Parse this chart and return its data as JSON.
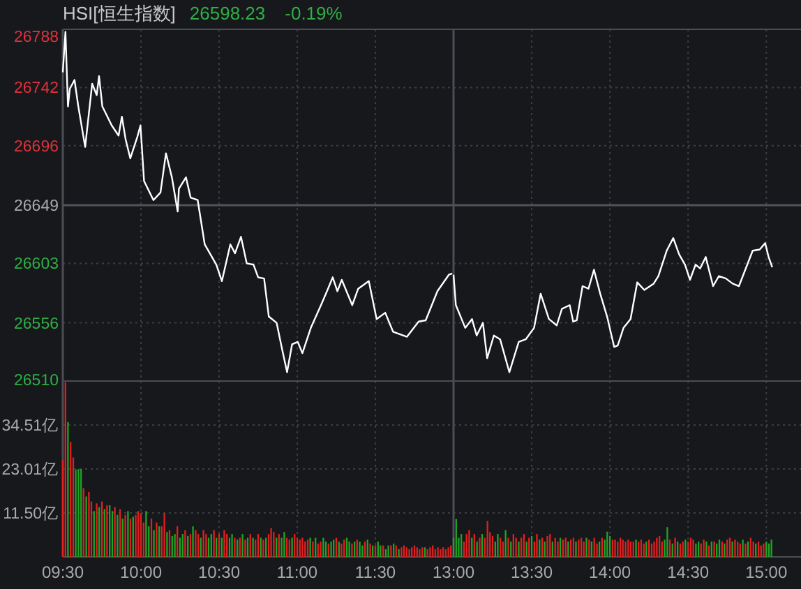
{
  "chart_data": [
    {
      "type": "line",
      "title": "HSI[恒生指数]",
      "annotations": [
        "26598.23",
        "-0.19%"
      ],
      "color": "#ffffff",
      "x": [
        9.5,
        9.517,
        9.533,
        9.545,
        9.575,
        9.598,
        9.643,
        9.688,
        9.717,
        9.732,
        9.753,
        9.813,
        9.857,
        9.878,
        9.902,
        9.932,
        9.977,
        9.997,
        10.02,
        10.08,
        10.125,
        10.16,
        10.198,
        10.235,
        10.243,
        10.288,
        10.318,
        10.363,
        10.408,
        10.482,
        10.518,
        10.572,
        10.602,
        10.64,
        10.677,
        10.72,
        10.75,
        10.788,
        10.818,
        10.868,
        10.9,
        10.935,
        10.967,
        11.003,
        11.033,
        11.087,
        11.152,
        11.197,
        11.227,
        11.257,
        11.285,
        11.352,
        11.39,
        11.458,
        11.508,
        11.563,
        11.613,
        11.702,
        11.777,
        11.822,
        11.897,
        11.97,
        11.992
      ],
      "values": [
        26754,
        26786,
        26727,
        26741,
        26748,
        26728,
        26695,
        26745,
        26736,
        26751,
        26727,
        26712,
        26704,
        26719,
        26701,
        26686,
        26703,
        26712,
        26668,
        26653,
        26659,
        26690,
        26671,
        26644,
        26662,
        26671,
        26655,
        26653,
        26618,
        26602,
        26589,
        26618,
        26611,
        26624,
        26603,
        26602,
        26592,
        26591,
        26561,
        26556,
        26537,
        26517,
        26539,
        26541,
        26532,
        26552,
        26570,
        26583,
        26592,
        26581,
        26590,
        26570,
        26583,
        26589,
        26559,
        26564,
        26549,
        26545,
        26557,
        26558,
        26581,
        26594,
        26595
      ],
      "xlim": [
        9.5,
        12
      ],
      "xticks": [
        9.5,
        10,
        10.5,
        11,
        11.5
      ],
      "ylim": [
        26510,
        26788
      ],
      "yticks": [
        26510,
        26556,
        26603,
        26649,
        26696,
        26742,
        26788
      ],
      "ref_lines": [
        {
          "axis": "y",
          "value": 26649
        }
      ],
      "grid": true,
      "tick_labels": "y"
    },
    {
      "type": "line",
      "color": "#ffffff",
      "x": [
        13,
        13.015,
        13.075,
        13.118,
        13.148,
        13.188,
        13.215,
        13.258,
        13.298,
        13.357,
        13.417,
        13.462,
        13.515,
        13.557,
        13.61,
        13.66,
        13.693,
        13.743,
        13.765,
        13.788,
        13.825,
        13.863,
        13.898,
        13.938,
        13.982,
        14.027,
        14.05,
        14.087,
        14.132,
        14.175,
        14.22,
        14.28,
        14.31,
        14.363,
        14.405,
        14.443,
        14.48,
        14.512,
        14.548,
        14.577,
        14.613,
        14.66,
        14.697,
        14.742,
        14.785,
        14.825,
        14.913,
        14.958,
        14.993,
        15.015,
        15.038
      ],
      "values": [
        26594,
        26570,
        26552,
        26559,
        26546,
        26556,
        26528,
        26546,
        26543,
        26517,
        26541,
        26543,
        26552,
        26579,
        26559,
        26554,
        26567,
        26570,
        26557,
        26558,
        26585,
        26583,
        26598,
        26579,
        26561,
        26537,
        26538,
        26552,
        26559,
        26588,
        26582,
        26587,
        26593,
        26613,
        26623,
        26610,
        26602,
        26590,
        26602,
        26599,
        26608,
        26585,
        26593,
        26591,
        26587,
        26585,
        26613,
        26614,
        26619,
        26608,
        26600
      ],
      "xlim": [
        13,
        15.222
      ],
      "xticks": [
        13,
        13.5,
        14,
        14.5,
        15
      ],
      "ylim": [
        26510,
        26788
      ],
      "yticks": [
        26510,
        26556,
        26603,
        26649,
        26696,
        26742,
        26788
      ],
      "ref_lines": [
        {
          "axis": "y",
          "value": 26649
        }
      ],
      "grid": true,
      "tick_labels": false
    },
    {
      "type": "bar",
      "x": [
        9.5,
        9.517,
        9.533,
        9.55,
        9.567,
        9.583,
        9.6,
        9.617,
        9.633,
        9.65,
        9.667,
        9.683,
        9.7,
        9.717,
        9.733,
        9.75,
        9.767,
        9.783,
        9.8,
        9.817,
        9.833,
        9.85,
        9.867,
        9.883,
        9.9,
        9.917,
        9.933,
        9.95,
        9.967,
        9.983,
        10,
        10.017,
        10.033,
        10.05,
        10.067,
        10.083,
        10.1,
        10.117,
        10.133,
        10.15,
        10.167,
        10.183,
        10.2,
        10.217,
        10.233,
        10.25,
        10.267,
        10.283,
        10.3,
        10.317,
        10.333,
        10.35,
        10.367,
        10.383,
        10.4,
        10.417,
        10.433,
        10.45,
        10.467,
        10.483,
        10.5,
        10.517,
        10.533,
        10.55,
        10.567,
        10.583,
        10.6,
        10.617,
        10.633,
        10.65,
        10.667,
        10.683,
        10.7,
        10.717,
        10.733,
        10.75,
        10.767,
        10.783,
        10.8,
        10.817,
        10.833,
        10.85,
        10.867,
        10.883,
        10.9,
        10.917,
        10.933,
        10.95,
        10.967,
        10.983,
        11,
        11.017,
        11.033,
        11.05,
        11.067,
        11.083,
        11.1,
        11.117,
        11.133,
        11.15,
        11.167,
        11.183,
        11.2,
        11.217,
        11.233,
        11.25,
        11.267,
        11.283,
        11.3,
        11.317,
        11.333,
        11.35,
        11.367,
        11.383,
        11.4,
        11.417,
        11.433,
        11.45,
        11.467,
        11.483,
        11.5,
        11.517,
        11.533,
        11.55,
        11.567,
        11.583,
        11.6,
        11.617,
        11.633,
        11.65,
        11.667,
        11.683,
        11.7,
        11.717,
        11.733,
        11.75,
        11.767,
        11.783,
        11.8,
        11.817,
        11.833,
        11.85,
        11.867,
        11.883,
        11.9,
        11.917,
        11.933,
        11.95,
        11.967,
        11.983
      ],
      "values": [
        25.3,
        45.7,
        35.3,
        30.1,
        26.0,
        22.8,
        23.0,
        23.0,
        18.0,
        15.8,
        17.0,
        14.5,
        12.0,
        14.0,
        13.0,
        14.5,
        12.5,
        13.5,
        13.5,
        12.0,
        13.0,
        11.0,
        12.5,
        10.0,
        11.0,
        12.0,
        10.0,
        10.5,
        11.0,
        12.0,
        11.5,
        9.0,
        12.0,
        8.0,
        10.0,
        7.0,
        9.0,
        8.0,
        8.0,
        11.5,
        6.5,
        7.0,
        5.5,
        6.0,
        8.0,
        5.0,
        6.0,
        7.0,
        5.5,
        6.0,
        8.0,
        7.0,
        6.0,
        5.0,
        7.0,
        6.0,
        5.0,
        6.0,
        7.0,
        5.0,
        6.0,
        5.0,
        7.0,
        6.0,
        5.0,
        6.0,
        5.0,
        4.5,
        5.0,
        6.0,
        4.5,
        5.0,
        6.0,
        5.0,
        4.5,
        6.0,
        5.0,
        4.5,
        5.0,
        6.0,
        7.5,
        6.5,
        5.0,
        6.0,
        5.0,
        6.5,
        5.0,
        4.5,
        5.0,
        6.0,
        5.0,
        4.5,
        5.0,
        4.0,
        4.5,
        5.0,
        4.0,
        5.0,
        3.5,
        4.0,
        5.0,
        4.0,
        3.5,
        4.0,
        4.5,
        5.0,
        4.0,
        3.5,
        4.5,
        5.0,
        4.0,
        3.5,
        4.0,
        4.5,
        4.0,
        3.0,
        4.0,
        4.5,
        3.5,
        3.0,
        3.0,
        4.0,
        3.0,
        3.0,
        2.0,
        3.0,
        3.0,
        3.5,
        3.0,
        2.0,
        2.5,
        3.0,
        2.5,
        2.0,
        2.5,
        3.0,
        2.5,
        2.0,
        2.5,
        2.5,
        2.0,
        2.5,
        3.0,
        2.0,
        2.5,
        2.0,
        2.5,
        2.0,
        2.5,
        3.0
      ],
      "colors": [
        "#e0201e",
        "#e0201e",
        "#1fa524",
        "#e0201e",
        "#e0201e",
        "#1fa524",
        "#1fa524",
        "#1fa524",
        "#e0201e",
        "#1fa524",
        "#e0201e",
        "#e0201e",
        "#1fa524",
        "#e0201e",
        "#1fa524",
        "#e0201e",
        "#1fa524",
        "#e0201e",
        "#1fa524",
        "#1fa524",
        "#e0201e",
        "#1fa524",
        "#e0201e",
        "#1fa524",
        "#e0201e",
        "#1fa524",
        "#e0201e",
        "#1fa524",
        "#e0201e",
        "#e0201e",
        "#e0201e",
        "#e0201e",
        "#1fa524",
        "#1fa524",
        "#e0201e",
        "#1fa524",
        "#e0201e",
        "#1fa524",
        "#e0201e",
        "#e0201e",
        "#1fa524",
        "#e0201e",
        "#1fa524",
        "#1fa524",
        "#e0201e",
        "#1fa524",
        "#1fa524",
        "#e0201e",
        "#1fa524",
        "#e0201e",
        "#1fa524",
        "#e0201e",
        "#e0201e",
        "#1fa524",
        "#e0201e",
        "#e0201e",
        "#1fa524",
        "#1fa524",
        "#e0201e",
        "#1fa524",
        "#e0201e",
        "#1fa524",
        "#e0201e",
        "#e0201e",
        "#1fa524",
        "#1fa524",
        "#e0201e",
        "#1fa524",
        "#e0201e",
        "#1fa524",
        "#e0201e",
        "#1fa524",
        "#e0201e",
        "#1fa524",
        "#e0201e",
        "#e0201e",
        "#1fa524",
        "#e0201e",
        "#1fa524",
        "#e0201e",
        "#e0201e",
        "#e0201e",
        "#1fa524",
        "#e0201e",
        "#1fa524",
        "#1fa524",
        "#e0201e",
        "#e0201e",
        "#1fa524",
        "#e0201e",
        "#e0201e",
        "#e0201e",
        "#e0201e",
        "#e0201e",
        "#e0201e",
        "#1fa524",
        "#e0201e",
        "#1fa524",
        "#e0201e",
        "#e0201e",
        "#1fa524",
        "#1fa524",
        "#e0201e",
        "#1fa524",
        "#1fa524",
        "#e0201e",
        "#1fa524",
        "#e0201e",
        "#e0201e",
        "#1fa524",
        "#1fa524",
        "#e0201e",
        "#1fa524",
        "#e0201e",
        "#1fa524",
        "#1fa524",
        "#e0201e",
        "#1fa524",
        "#e0201e",
        "#1fa524",
        "#e0201e",
        "#1fa524",
        "#1fa524",
        "#e0201e",
        "#1fa524",
        "#1fa524",
        "#e0201e",
        "#1fa524",
        "#e0201e",
        "#1fa524",
        "#e0201e",
        "#e0201e",
        "#e0201e",
        "#e0201e",
        "#e0201e",
        "#e0201e",
        "#e0201e",
        "#e0201e",
        "#e0201e",
        "#1fa524",
        "#e0201e",
        "#e0201e",
        "#e0201e",
        "#e0201e",
        "#e0201e",
        "#e0201e",
        "#e0201e",
        "#e0201e",
        "#e0201e",
        "#e0201e"
      ],
      "xlim": [
        9.5,
        12
      ],
      "xticks": [
        {
          "value": 9.5,
          "label": "09:30"
        },
        {
          "value": 10,
          "label": "10:00"
        },
        {
          "value": 10.5,
          "label": "10:30"
        },
        {
          "value": 11,
          "label": "11:00"
        },
        {
          "value": 11.5,
          "label": "11:30"
        }
      ],
      "ylim": [
        0,
        46.0
      ],
      "yticks": [
        {
          "value": 11.5,
          "label": "11.50亿"
        },
        {
          "value": 23.01,
          "label": "23.01亿"
        },
        {
          "value": 34.51,
          "label": "34.51亿"
        }
      ],
      "grid": true
    },
    {
      "type": "bar",
      "x": [
        13,
        13.017,
        13.033,
        13.05,
        13.067,
        13.083,
        13.1,
        13.117,
        13.133,
        13.15,
        13.167,
        13.183,
        13.2,
        13.217,
        13.233,
        13.25,
        13.267,
        13.283,
        13.3,
        13.317,
        13.333,
        13.35,
        13.367,
        13.383,
        13.4,
        13.417,
        13.433,
        13.45,
        13.467,
        13.483,
        13.5,
        13.517,
        13.533,
        13.55,
        13.567,
        13.583,
        13.6,
        13.617,
        13.633,
        13.65,
        13.667,
        13.683,
        13.7,
        13.717,
        13.733,
        13.75,
        13.767,
        13.783,
        13.8,
        13.817,
        13.833,
        13.85,
        13.867,
        13.883,
        13.9,
        13.917,
        13.933,
        13.95,
        13.967,
        13.983,
        14,
        14.017,
        14.033,
        14.05,
        14.067,
        14.083,
        14.1,
        14.117,
        14.133,
        14.15,
        14.167,
        14.183,
        14.2,
        14.217,
        14.233,
        14.25,
        14.267,
        14.283,
        14.3,
        14.317,
        14.333,
        14.35,
        14.367,
        14.383,
        14.4,
        14.417,
        14.433,
        14.45,
        14.467,
        14.483,
        14.5,
        14.517,
        14.533,
        14.55,
        14.567,
        14.583,
        14.6,
        14.617,
        14.633,
        14.65,
        14.667,
        14.683,
        14.7,
        14.717,
        14.733,
        14.75,
        14.767,
        14.783,
        14.8,
        14.817,
        14.833,
        14.85,
        14.867,
        14.883,
        14.9,
        14.917,
        14.933,
        14.95,
        14.967,
        14.983,
        15,
        15.017,
        15.033
      ],
      "values": [
        5.0,
        9.9,
        5.0,
        6.0,
        4.0,
        6.0,
        7.0,
        5.0,
        6.0,
        4.0,
        5.0,
        6.0,
        5.0,
        9.4,
        6.5,
        5.5,
        4.0,
        6.0,
        5.0,
        4.0,
        7.0,
        5.0,
        4.0,
        6.0,
        5.0,
        4.0,
        5.0,
        6.0,
        4.0,
        5.0,
        5.5,
        4.0,
        6.0,
        4.5,
        5.0,
        4.0,
        5.5,
        6.0,
        4.0,
        5.0,
        4.0,
        5.0,
        4.5,
        5.0,
        4.0,
        4.5,
        5.0,
        4.0,
        4.5,
        5.0,
        4.0,
        5.0,
        4.5,
        4.0,
        5.0,
        3.5,
        4.0,
        5.0,
        4.5,
        6.6,
        5.5,
        4.5,
        4.5,
        4.0,
        5.0,
        4.5,
        4.0,
        4.5,
        4.0,
        4.0,
        4.5,
        4.0,
        4.5,
        3.5,
        4.0,
        4.5,
        3.5,
        4.0,
        5.0,
        5.5,
        4.0,
        4.5,
        7.8,
        4.5,
        3.5,
        5.0,
        4.0,
        3.5,
        4.0,
        4.5,
        4.0,
        5.0,
        4.5,
        3.5,
        4.0,
        3.5,
        4.5,
        4.0,
        3.0,
        4.0,
        4.0,
        3.5,
        4.5,
        4.0,
        3.5,
        4.5,
        5.0,
        4.0,
        4.5,
        4.0,
        3.5,
        4.5,
        3.5,
        4.0,
        5.0,
        4.0,
        3.5,
        4.0,
        3.0,
        3.5,
        4.0,
        3.5,
        4.5
      ],
      "colors": [
        "#1fa524",
        "#1fa524",
        "#1fa524",
        "#1fa524",
        "#e0201e",
        "#e0201e",
        "#e0201e",
        "#1fa524",
        "#e0201e",
        "#1fa524",
        "#e0201e",
        "#1fa524",
        "#e0201e",
        "#e0201e",
        "#e0201e",
        "#e0201e",
        "#1fa524",
        "#1fa524",
        "#e0201e",
        "#e0201e",
        "#1fa524",
        "#e0201e",
        "#1fa524",
        "#e0201e",
        "#e0201e",
        "#1fa524",
        "#e0201e",
        "#e0201e",
        "#1fa524",
        "#e0201e",
        "#1fa524",
        "#e0201e",
        "#e0201e",
        "#1fa524",
        "#e0201e",
        "#1fa524",
        "#e0201e",
        "#e0201e",
        "#1fa524",
        "#e0201e",
        "#e0201e",
        "#1fa524",
        "#e0201e",
        "#e0201e",
        "#1fa524",
        "#e0201e",
        "#e0201e",
        "#1fa524",
        "#e0201e",
        "#e0201e",
        "#e0201e",
        "#1fa524",
        "#e0201e",
        "#1fa524",
        "#e0201e",
        "#e0201e",
        "#1fa524",
        "#e0201e",
        "#1fa524",
        "#1fa524",
        "#1fa524",
        "#e0201e",
        "#e0201e",
        "#e0201e",
        "#e0201e",
        "#e0201e",
        "#e0201e",
        "#e0201e",
        "#e0201e",
        "#e0201e",
        "#1fa524",
        "#e0201e",
        "#e0201e",
        "#e0201e",
        "#1fa524",
        "#e0201e",
        "#e0201e",
        "#e0201e",
        "#e0201e",
        "#e0201e",
        "#e0201e",
        "#1fa524",
        "#1fa524",
        "#e0201e",
        "#1fa524",
        "#e0201e",
        "#1fa524",
        "#e0201e",
        "#e0201e",
        "#1fa524",
        "#e0201e",
        "#e0201e",
        "#e0201e",
        "#1fa524",
        "#1fa524",
        "#e0201e",
        "#e0201e",
        "#1fa524",
        "#e0201e",
        "#1fa524",
        "#e0201e",
        "#1fa524",
        "#1fa524",
        "#e0201e",
        "#1fa524",
        "#e0201e",
        "#e0201e",
        "#1fa524",
        "#e0201e",
        "#e0201e",
        "#e0201e",
        "#1fa524",
        "#e0201e",
        "#1fa524",
        "#e0201e",
        "#e0201e",
        "#1fa524",
        "#e0201e",
        "#e0201e",
        "#e0201e",
        "#1fa524",
        "#1fa524",
        "#1fa524"
      ],
      "xlim": [
        13,
        15.222
      ],
      "xticks": [
        {
          "value": 13,
          "label": "13:00"
        },
        {
          "value": 13.5,
          "label": "13:30"
        },
        {
          "value": 14,
          "label": "14:00"
        },
        {
          "value": 14.5,
          "label": "14:30"
        },
        {
          "value": 15,
          "label": "15:00"
        }
      ],
      "ylim": [
        0,
        46.0
      ],
      "yticks": [
        {
          "value": 11.5,
          "label": null
        },
        {
          "value": 23.01,
          "label": null
        },
        {
          "value": 34.51,
          "label": null
        }
      ],
      "grid": true,
      "tick_labels": "x"
    }
  ]
}
